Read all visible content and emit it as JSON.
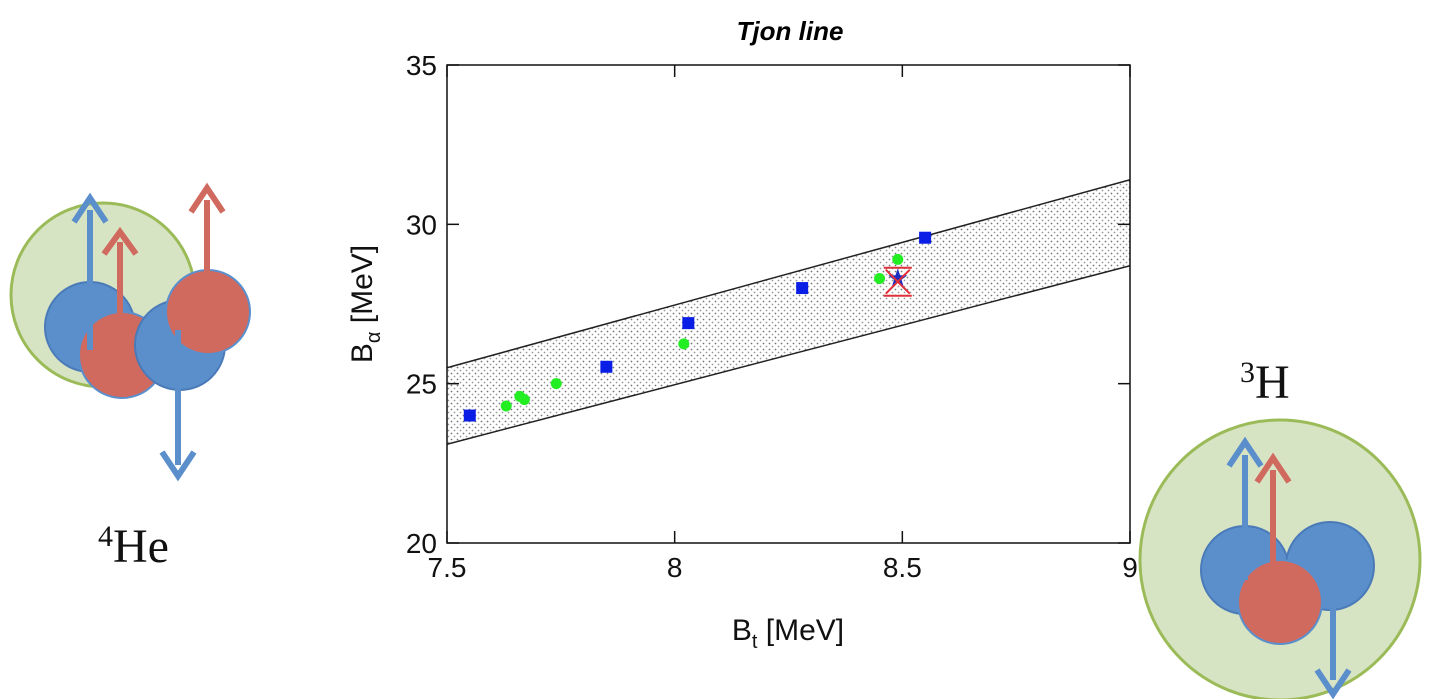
{
  "chart_data": {
    "type": "scatter",
    "title": "Tjon line",
    "x_label": [
      "B",
      "t",
      " [MeV]"
    ],
    "y_label": [
      "B",
      "α",
      " [MeV]"
    ],
    "xlim": [
      7.5,
      9
    ],
    "ylim": [
      20,
      35
    ],
    "xticks": [
      7.5,
      8,
      8.5,
      9
    ],
    "yticks": [
      20,
      25,
      30,
      35
    ],
    "band": {
      "x": [
        7.5,
        9
      ],
      "upper": [
        25.5,
        31.4
      ],
      "lower": [
        23.1,
        28.7
      ],
      "color": "#222222"
    },
    "series": [
      {
        "marker": "square",
        "color": "#0a1ee6",
        "x": [
          7.55,
          7.85,
          8.03,
          8.28,
          8.55
        ],
        "values": [
          24.0,
          25.53,
          26.9,
          28.0,
          29.58
        ]
      },
      {
        "marker": "circle",
        "color": "#22ee22",
        "x": [
          7.63,
          7.66,
          7.67,
          7.74,
          8.02,
          8.45,
          8.49
        ],
        "values": [
          24.3,
          24.6,
          24.5,
          25.0,
          26.25,
          28.3,
          28.9
        ]
      },
      {
        "marker": "star",
        "color": "#1a2fbf",
        "x": [
          8.49
        ],
        "values": [
          28.3
        ]
      },
      {
        "marker": "x",
        "color": "#e0303a",
        "x": [
          8.49
        ],
        "values": [
          28.2
        ]
      }
    ],
    "nuclei": [
      {
        "mass": "4",
        "symbol": "He"
      },
      {
        "mass": "3",
        "symbol": "H"
      }
    ]
  }
}
